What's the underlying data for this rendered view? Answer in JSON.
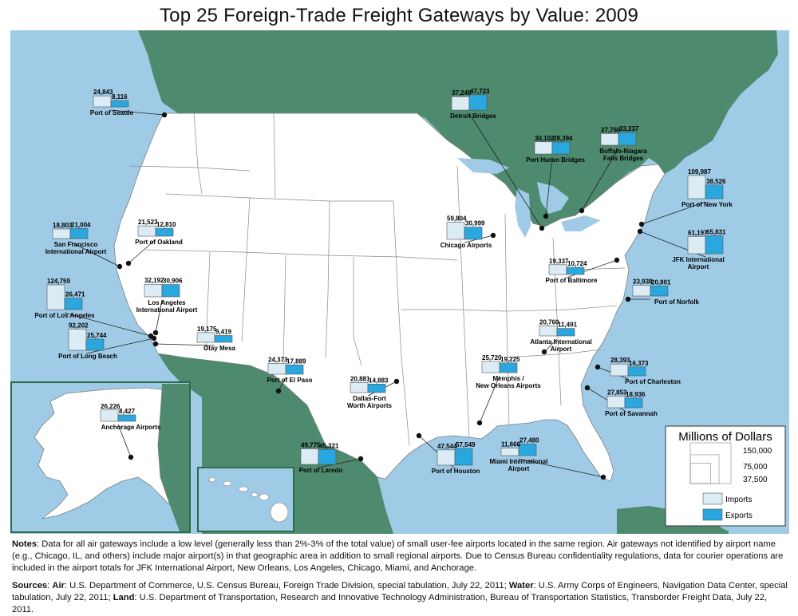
{
  "title": "Top 25 Foreign-Trade Freight Gateways by Value: 2009",
  "colors": {
    "ocean": "#9fcbe6",
    "foreign_land": "#4e8a6e",
    "us_land": "#ffffff",
    "imports": "#dcecf5",
    "exports": "#2aa7df"
  },
  "gateways": [
    {
      "name": "Port of Seattle",
      "imports": "24,843",
      "exports": "8,116",
      "imp_value": 24843,
      "exp_value": 8116
    },
    {
      "name": "Detroit Bridges",
      "imports": "37,246",
      "exports": "47,723",
      "imp_value": 37246,
      "exp_value": 47723
    },
    {
      "name": "Port Huron Bridges",
      "imports": "30,102",
      "exports": "28,394",
      "imp_value": 30102,
      "exp_value": 28394
    },
    {
      "name": "Buffalo-Niagara Falls Bridges",
      "imports": "27,760",
      "exports": "33,237",
      "imp_value": 27760,
      "exp_value": 33237
    },
    {
      "name": "Port of New York",
      "imports": "109,987",
      "exports": "38,526",
      "imp_value": 109987,
      "exp_value": 38526
    },
    {
      "name": "JFK International Airport",
      "imports": "61,197",
      "exports": "65,831",
      "imp_value": 61197,
      "exp_value": 65831
    },
    {
      "name": "Chicago Airports",
      "imports": "59,804",
      "exports": "30,999",
      "imp_value": 59804,
      "exp_value": 30999
    },
    {
      "name": "Port of Baltimore",
      "imports": "19,337",
      "exports": "10,724",
      "imp_value": 19337,
      "exp_value": 10724
    },
    {
      "name": "Port of Norfolk",
      "imports": "23,938",
      "exports": "20,801",
      "imp_value": 23938,
      "exp_value": 20801
    },
    {
      "name": "Atlanta International Airport",
      "imports": "20,760",
      "exports": "11,491",
      "imp_value": 20760,
      "exp_value": 11491
    },
    {
      "name": "Port of Charleston",
      "imports": "28,393",
      "exports": "16,373",
      "imp_value": 28393,
      "exp_value": 16373
    },
    {
      "name": "Port of Savannah",
      "imports": "27,853",
      "exports": "18,936",
      "imp_value": 27853,
      "exp_value": 18936
    },
    {
      "name": "Miami International Airport",
      "imports": "11,666",
      "exports": "27,480",
      "imp_value": 11666,
      "exp_value": 27480
    },
    {
      "name": "Port of Houston",
      "imports": "47,544",
      "exports": "57,549",
      "imp_value": 47544,
      "exp_value": 57549
    },
    {
      "name": "Memphis / New Orleans Airports",
      "imports": "25,720",
      "exports": "19,225",
      "imp_value": 25720,
      "exp_value": 19225
    },
    {
      "name": "Dallas-Fort Worth Airports",
      "imports": "20,881",
      "exports": "14,883",
      "imp_value": 20881,
      "exp_value": 14883
    },
    {
      "name": "Port of Laredo",
      "imports": "49,775",
      "exports": "45,321",
      "imp_value": 49775,
      "exp_value": 45321
    },
    {
      "name": "Port of El Paso",
      "imports": "24,373",
      "exports": "17,889",
      "imp_value": 24373,
      "exp_value": 17889
    },
    {
      "name": "Otay Mesa",
      "imports": "19,175",
      "exports": "9,419",
      "imp_value": 19175,
      "exp_value": 9419
    },
    {
      "name": "Port of Long Beach",
      "imports": "92,202",
      "exports": "25,744",
      "imp_value": 92202,
      "exp_value": 25744
    },
    {
      "name": "Port of Los Angeles",
      "imports": "124,759",
      "exports": "26,471",
      "imp_value": 124759,
      "exp_value": 26471
    },
    {
      "name": "Los Angeles International Airport",
      "imports": "32,192",
      "exports": "30,906",
      "imp_value": 32192,
      "exp_value": 30906
    },
    {
      "name": "Port of Oakland",
      "imports": "21,523",
      "exports": "12,810",
      "imp_value": 21523,
      "exp_value": 12810
    },
    {
      "name": "San Francisco International Airport",
      "imports": "18,803",
      "exports": "21,004",
      "imp_value": 18803,
      "exp_value": 21004
    },
    {
      "name": "Anchorage Airports",
      "imports": "26,226",
      "exports": "8,427",
      "imp_value": 26226,
      "exp_value": 8427
    }
  ],
  "legend": {
    "title": "Millions of Dollars",
    "scale_labels": [
      "150,000",
      "75,000",
      "37,500"
    ],
    "scale_values": [
      150000,
      75000,
      37500
    ],
    "imports_label": "Imports",
    "exports_label": "Exports"
  },
  "notes": {
    "label": "Notes",
    "text": ": Data for all air gateways include a low level (generally less than 2%-3% of the total value) of small user-fee airports located in the same region. Air gateways not identified by airport name (e.g., Chicago, IL, and others) include major airport(s) in that geographic area in addition to small regional airports. Due to Census Bureau confidentiality regulations, data for courier operations are included in the airport totals for JFK International Airport, New Orleans, Los Angeles, Chicago, Miami, and Anchorage."
  },
  "sources": {
    "label": "Sources",
    "air_label": "Air",
    "air_text": ": U.S. Department of Commerce, U.S. Census Bureau, Foreign Trade Division, special tabulation, July 22, 2011; ",
    "water_label": "Water",
    "water_text": ": U.S. Army Corps of Engineers, Navigation Data Center, special tabulation, July 22, 2011; ",
    "land_label": "Land",
    "land_text": ": U.S. Department of Transportation, Research and Innovative Technology Administration, Bureau of Transportation Statistics, Transborder Freight Data, July 22, 2011."
  }
}
